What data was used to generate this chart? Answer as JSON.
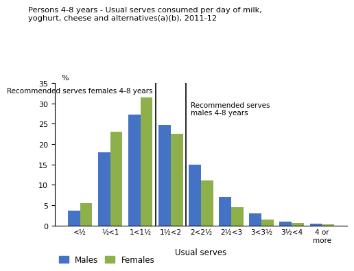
{
  "title": "Persons 4-8 years - Usual serves consumed per day of milk,\nyoghurt, cheese and alternatives(a)(b), 2011-12",
  "categories": [
    "<½",
    "½<1",
    "1<1½",
    "1½<2",
    "2<2½",
    "2½<3",
    "3<3½",
    "3½<4",
    "4 or\nmore"
  ],
  "males": [
    3.6,
    18.0,
    27.2,
    24.8,
    15.0,
    7.0,
    3.0,
    1.0,
    0.5
  ],
  "females": [
    5.5,
    23.0,
    31.5,
    22.5,
    11.0,
    4.5,
    1.5,
    0.6,
    0.2
  ],
  "male_color": "#4472C4",
  "female_color": "#8DB04A",
  "percent_label": "%",
  "xlabel": "Usual serves",
  "ylim": [
    0,
    35
  ],
  "yticks": [
    0,
    5,
    10,
    15,
    20,
    25,
    30,
    35
  ],
  "female_label_text": "Recommended serves females 4-8 years",
  "male_label_text": "Recommended serves\nmales 4-8 years",
  "legend_males": "Males",
  "legend_females": "Females"
}
